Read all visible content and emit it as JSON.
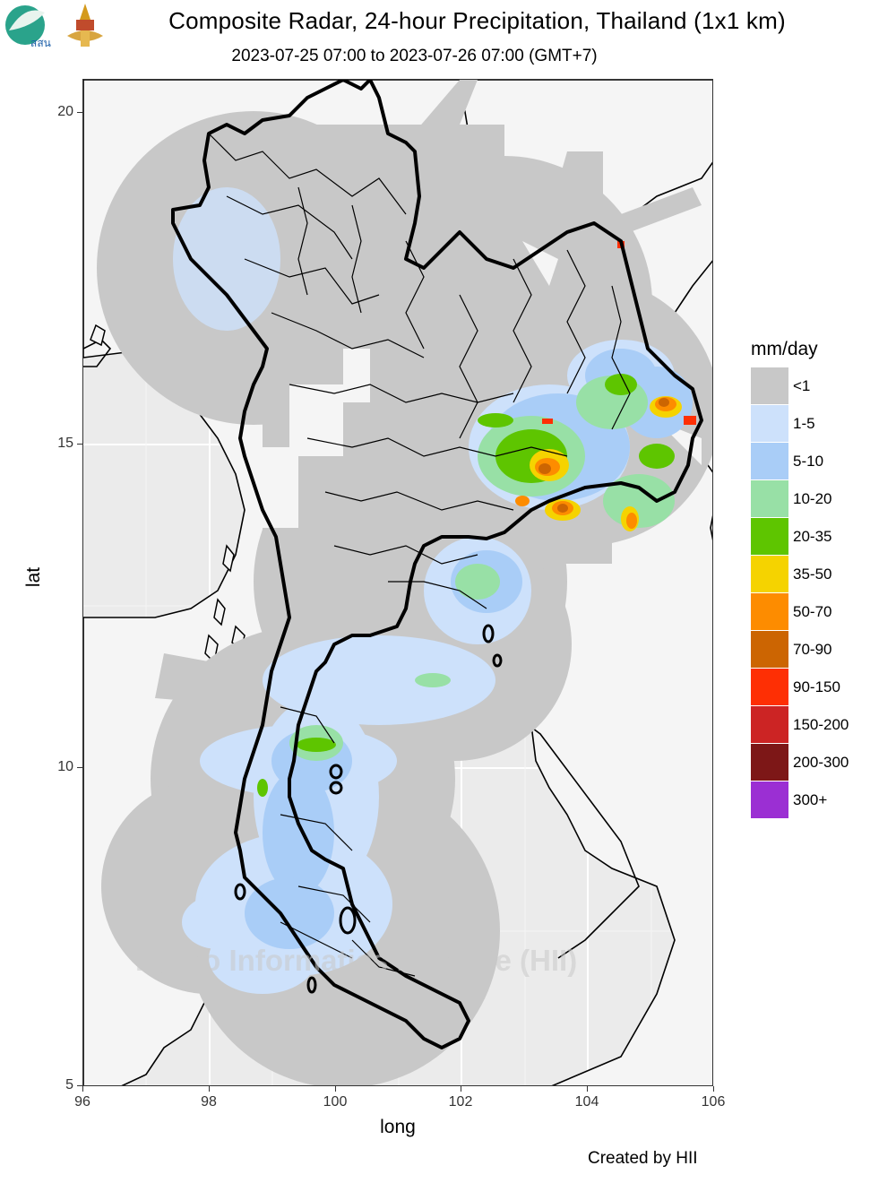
{
  "header": {
    "title": "Composite Radar, 24-hour Precipitation, Thailand (1x1 km)",
    "subtitle": "2023-07-25 07:00 to 2023-07-26 07:00 (GMT+7)",
    "logo_left_text": "สสน"
  },
  "axes": {
    "xlabel": "long",
    "ylabel": "lat",
    "x_range": [
      96,
      106
    ],
    "y_range": [
      5,
      20.5
    ],
    "x_ticks": [
      "96",
      "98",
      "100",
      "102",
      "104",
      "106"
    ],
    "y_ticks": [
      "5",
      "10",
      "15",
      "20"
    ]
  },
  "legend": {
    "title": "mm/day",
    "items": [
      {
        "label": "<1",
        "color": "#c8c8c8"
      },
      {
        "label": "1-5",
        "color": "#cde1fb"
      },
      {
        "label": "5-10",
        "color": "#a9cdf7"
      },
      {
        "label": "10-20",
        "color": "#98e0a6"
      },
      {
        "label": "20-35",
        "color": "#5ec500"
      },
      {
        "label": "35-50",
        "color": "#f5d300"
      },
      {
        "label": "50-70",
        "color": "#fd8c00"
      },
      {
        "label": "70-90",
        "color": "#cc6502"
      },
      {
        "label": "90-150",
        "color": "#fe2f04"
      },
      {
        "label": "150-200",
        "color": "#cc2424"
      },
      {
        "label": "200-300",
        "color": "#7d1717"
      },
      {
        "label": "300+",
        "color": "#9b2fd3"
      }
    ]
  },
  "watermark": "Hydro Informatics Institute (HII)",
  "credit": "Created by HII"
}
